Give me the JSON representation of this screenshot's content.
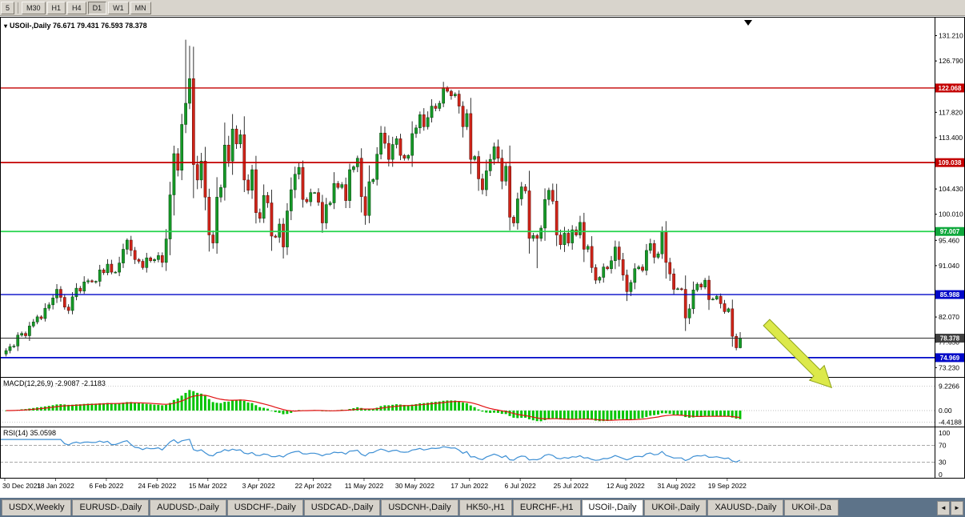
{
  "toolbar": {
    "buttons": [
      "5",
      "M30",
      "H1",
      "H4",
      "D1",
      "W1",
      "MN"
    ],
    "active": "D1"
  },
  "chart": {
    "title": "USOil-,Daily  76.671 79.431 76.593 78.378"
  },
  "macd": {
    "label": "MACD(12,26,9) -2.9087 -2.1183",
    "ticks": [
      {
        "label": "9.2266",
        "v": 9.2266
      },
      {
        "label": "0.00",
        "v": 0
      },
      {
        "label": "-4.4188",
        "v": -4.4188
      }
    ]
  },
  "rsi": {
    "label": "RSI(14) 35.0598",
    "ticks": [
      {
        "label": "100",
        "v": 100
      },
      {
        "label": "70",
        "v": 70
      },
      {
        "label": "30",
        "v": 30
      },
      {
        "label": "0",
        "v": 0
      }
    ],
    "levels": [
      70,
      30
    ]
  },
  "chart_data": {
    "type": "candlestick",
    "symbol": "USOil-",
    "timeframe": "Daily",
    "ohlc_display": {
      "open": "76.671",
      "high": "79.431",
      "low": "76.593",
      "close": "78.378"
    },
    "y_range": [
      71.6,
      134.5
    ],
    "y_axis_ticks": [
      "131.210",
      "126.790",
      "117.820",
      "113.400",
      "104.430",
      "100.010",
      "95.460",
      "91.040",
      "82.070",
      "77.650",
      "73.230"
    ],
    "h_lines": [
      {
        "price": 122.068,
        "label": "122.068",
        "color": "#c40000",
        "tag_bg": "#c40000",
        "width": 1.4
      },
      {
        "price": 109.038,
        "label": "109.038",
        "color": "#c40000",
        "tag_bg": "#c40000",
        "width": 1.8
      },
      {
        "price": 97.007,
        "label": "97.007",
        "color": "#24d44c",
        "tag_bg": "#0fa83c",
        "width": 1.8
      },
      {
        "price": 85.988,
        "label": "85.988",
        "color": "#0008c8",
        "tag_bg": "#0008c8",
        "width": 1.4
      },
      {
        "price": 78.378,
        "label": "78.378",
        "color": "#2b2b2b",
        "tag_bg": "#3f3f3f",
        "width": 1.0
      },
      {
        "price": 74.969,
        "label": "74.969",
        "color": "#0008c8",
        "tag_bg": "#0008c8",
        "width": 1.8
      }
    ],
    "x_labels": [
      "30 Dec 2021",
      "18 Jan 2022",
      "6 Feb 2022",
      "24 Feb 2022",
      "15 Mar 2022",
      "3 Apr 2022",
      "22 Apr 2022",
      "11 May 2022",
      "30 May 2022",
      "17 Jun 2022",
      "6 Jul 2022",
      "25 Jul 2022",
      "12 Aug 2022",
      "31 Aug 2022",
      "19 Sep 2022"
    ],
    "x_label_indices": [
      0,
      13,
      26,
      39,
      52,
      65,
      79,
      92,
      105,
      119,
      132,
      145,
      159,
      172,
      185
    ],
    "first_open": 75.6,
    "closes": [
      76.2,
      76.9,
      77.0,
      78.9,
      79.2,
      78.8,
      80.5,
      81.2,
      82.1,
      81.8,
      83.6,
      84.2,
      85.4,
      86.9,
      85.5,
      83.8,
      83.2,
      85.6,
      87.1,
      86.6,
      88.2,
      88.4,
      88.2,
      88.3,
      90.3,
      89.8,
      91.3,
      89.9,
      89.9,
      91.5,
      93.9,
      95.5,
      93.7,
      92.1,
      91.8,
      90.7,
      92.4,
      91.9,
      92.1,
      92.8,
      91.6,
      95.7,
      103.4,
      110.6,
      107.7,
      115.7,
      119.4,
      123.7,
      108.7,
      106.0,
      109.3,
      103.0,
      96.4,
      95.0,
      103.0,
      104.7,
      112.1,
      109.3,
      114.9,
      112.3,
      113.9,
      106.0,
      104.2,
      107.8,
      100.3,
      99.3,
      103.3,
      102.0,
      96.2,
      96.0,
      98.3,
      94.3,
      100.6,
      104.3,
      107.0,
      108.2,
      102.6,
      102.2,
      103.8,
      103.8,
      102.1,
      98.5,
      101.7,
      102.0,
      105.4,
      104.7,
      105.2,
      102.4,
      107.8,
      108.3,
      109.8,
      103.1,
      99.8,
      105.7,
      106.1,
      110.5,
      114.2,
      112.4,
      109.6,
      112.2,
      113.2,
      110.3,
      109.8,
      110.3,
      114.1,
      115.1,
      117.4,
      115.3,
      116.9,
      118.9,
      118.5,
      119.4,
      122.1,
      121.5,
      120.7,
      121.0,
      118.9,
      115.3,
      117.6,
      109.6,
      110.1,
      106.2,
      104.3,
      107.6,
      109.6,
      111.8,
      109.8,
      105.8,
      108.4,
      99.5,
      98.5,
      102.7,
      104.8,
      104.1,
      95.8,
      96.3,
      95.8,
      97.6,
      102.6,
      104.2,
      102.3,
      96.4,
      94.7,
      96.7,
      95.0,
      97.3,
      96.4,
      98.6,
      93.9,
      94.4,
      90.7,
      88.5,
      89.0,
      90.8,
      90.5,
      91.9,
      94.3,
      92.1,
      89.4,
      86.5,
      88.1,
      90.5,
      90.8,
      90.2,
      93.7,
      94.9,
      92.5,
      93.1,
      97.0,
      91.6,
      89.6,
      86.9,
      87.0,
      86.9,
      81.9,
      83.5,
      86.8,
      87.8,
      87.3,
      88.5,
      85.1,
      85.2,
      85.7,
      84.4,
      83.0,
      83.5,
      78.7,
      76.7,
      78.378
    ],
    "wick_overrides": {
      "31": {
        "h": 95.8
      },
      "46": {
        "h": 130.5
      },
      "47": {
        "h": 129.44
      },
      "52": {
        "l": 93.5
      },
      "129": {
        "l": 97.2
      },
      "136": {
        "l": 90.6
      },
      "187": {
        "l": 76.25
      },
      "188": {
        "h": 79.431,
        "l": 76.593
      }
    },
    "arrow_annotation": {
      "name": "down-right-arrow",
      "color": "#dce94a",
      "outline": "#8fa31c"
    }
  },
  "tabs": {
    "items": [
      "USDX,Weekly",
      "EURUSD-,Daily",
      "AUDUSD-,Daily",
      "USDCHF-,Daily",
      "USDCAD-,Daily",
      "USDCNH-,Daily",
      "HK50-,H1",
      "EURCHF-,H1",
      "USOil-,Daily",
      "UKOil-,Daily",
      "XAUUSD-,Daily",
      "UKOil-,Da"
    ],
    "active_index": 8,
    "left_arrow": "◄",
    "right_arrow": "►"
  },
  "colors": {
    "bull": "#159a27",
    "bull_border": "#06400d",
    "bear": "#cf2318",
    "bear_border": "#5a0e08",
    "wick": "#1c1c1c",
    "macd_hist": "#00c400",
    "macd_signal": "#e01010",
    "rsi_line": "#3d8fd4",
    "axis_text": "#000000",
    "tabbar_bg": "#5d7389"
  }
}
